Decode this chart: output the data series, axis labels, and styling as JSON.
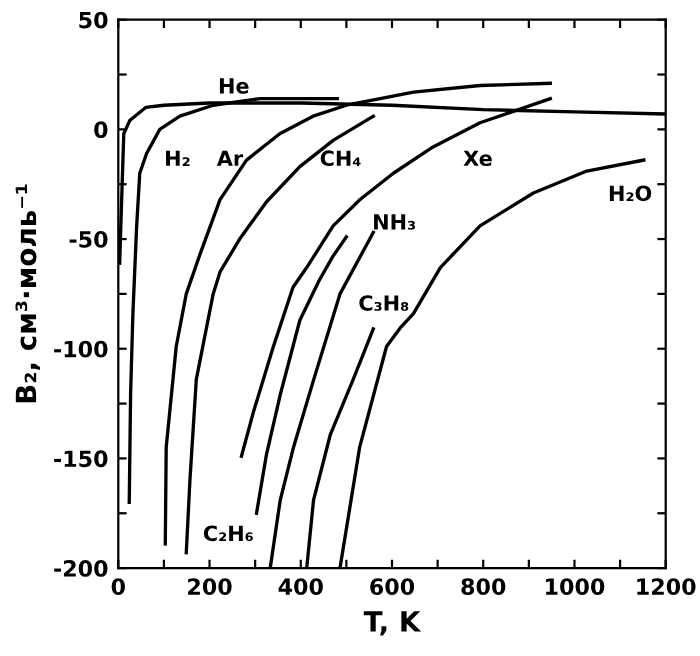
{
  "chart_data": {
    "type": "line",
    "xlabel": "T, K",
    "ylabel": "B₂, см³·моль⁻¹",
    "xlim": [
      0,
      1200
    ],
    "ylim": [
      -200,
      50
    ],
    "xticks": [
      0,
      {
        "value": 100,
        "label": null
      },
      200,
      {
        "value": 300,
        "label": null
      },
      400,
      {
        "value": 500,
        "label": null
      },
      600,
      {
        "value": 700,
        "label": null
      },
      800,
      {
        "value": 900,
        "label": null
      },
      1000,
      {
        "value": 1100,
        "label": null
      },
      1200
    ],
    "yticks": [
      -200,
      {
        "value": -175,
        "label": null
      },
      -150,
      {
        "value": -125,
        "label": null
      },
      -100,
      {
        "value": -75,
        "label": null
      },
      -50,
      {
        "value": -25,
        "label": null
      },
      0,
      {
        "value": 25,
        "label": null
      },
      50
    ],
    "grid": false,
    "marker": "none",
    "line_style": "solid",
    "series": [
      {
        "name": "He",
        "color": "#000000",
        "x": [
          3,
          6,
          12,
          25,
          60,
          100,
          200,
          400,
          600,
          800,
          1000,
          1200
        ],
        "values": [
          -61,
          -41,
          -2,
          4,
          10,
          11,
          12,
          12,
          11,
          9,
          8,
          7
        ]
      },
      {
        "name": "H₂",
        "color": "#000000",
        "x": [
          24,
          27,
          32,
          40,
          47,
          62,
          91,
          135,
          208,
          310,
          480
        ],
        "values": [
          -170,
          -120,
          -84,
          -45,
          -20,
          -11,
          0,
          6,
          11,
          14,
          14
        ]
      },
      {
        "name": "Ar",
        "color": "#000000",
        "x": [
          103,
          105,
          127,
          149,
          179,
          223,
          281,
          354,
          427,
          500,
          574,
          647,
          793,
          947
        ],
        "values": [
          -189,
          -145,
          -99,
          -75,
          -57,
          -32,
          -14,
          -2,
          6,
          11,
          14,
          17,
          20,
          21
        ]
      },
      {
        "name": "CH₄",
        "color": "#000000",
        "x": [
          149,
          157,
          171,
          208,
          223,
          266,
          325,
          398,
          471,
          559
        ],
        "values": [
          -193,
          -160,
          -114,
          -75,
          -65,
          -50,
          -33,
          -17,
          -5,
          6
        ]
      },
      {
        "name": "Xe",
        "color": "#000000",
        "x": [
          270,
          296,
          340,
          383,
          413,
          471,
          530,
          603,
          690,
          793,
          947
        ],
        "values": [
          -149,
          -129,
          -99,
          -72,
          -63,
          -44,
          -32,
          -20,
          -8,
          3,
          14
        ]
      },
      {
        "name": "C₂H₆",
        "color": "#000000",
        "x": [
          303,
          325,
          355,
          398,
          440,
          470,
          500
        ],
        "values": [
          -175,
          -148,
          -121,
          -87,
          -69,
          -58,
          -49
        ]
      },
      {
        "name": "NH₃",
        "color": "#000000",
        "x": [
          333,
          355,
          384,
          427,
          486,
          559
        ],
        "values": [
          -200,
          -169,
          -145,
          -115,
          -75,
          -47
        ]
      },
      {
        "name": "C₃H₈",
        "color": "#000000",
        "x": [
          413,
          428,
          465,
          515,
          559
        ],
        "values": [
          -200,
          -169,
          -139,
          -114,
          -91
        ]
      },
      {
        "name": "H₂O",
        "color": "#000000",
        "x": [
          486,
          529,
          588,
          620,
          647,
          706,
          793,
          910,
          1027,
          1152
        ],
        "values": [
          -200,
          -145,
          -99,
          -90,
          -84,
          -63,
          -44,
          -29,
          -19,
          -14
        ]
      }
    ]
  }
}
